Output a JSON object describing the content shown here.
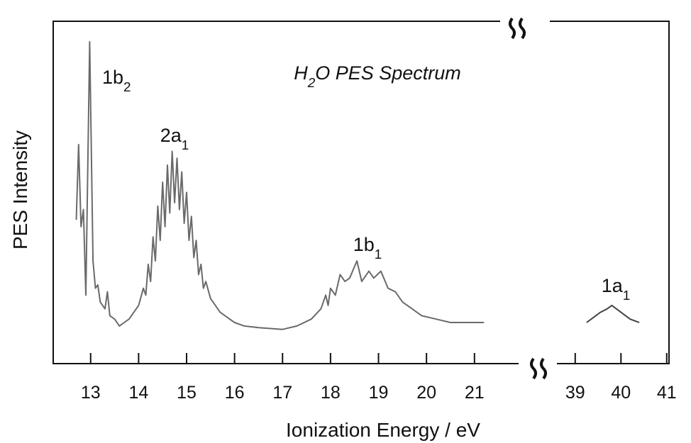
{
  "chart_data": {
    "type": "line",
    "title": "H2O PES Spectrum",
    "xlabel": "Ionization Energy / eV",
    "ylabel": "PES Intensity",
    "xlim": [
      12.22,
      21.92
    ],
    "xticks": [
      13,
      14,
      15,
      16,
      17,
      18,
      19,
      20,
      21
    ],
    "xlim_right": [
      38.6,
      41.05
    ],
    "xticks_right": [
      39,
      40,
      41
    ],
    "ylim": [
      0,
      100
    ],
    "annotations": [
      "1b2",
      "2a1",
      "1b1",
      "1a1"
    ],
    "series": [
      {
        "color": "#6a6a6a",
        "x": [
          12.7,
          12.75,
          12.8,
          12.85,
          12.9,
          12.98,
          13.05,
          13.1,
          13.15,
          13.2,
          13.3,
          13.35,
          13.4,
          13.5,
          13.6,
          13.7,
          13.8,
          13.9,
          14.0,
          14.1,
          14.15,
          14.2,
          14.25,
          14.3,
          14.35,
          14.4,
          14.45,
          14.5,
          14.55,
          14.6,
          14.65,
          14.7,
          14.75,
          14.8,
          14.85,
          14.9,
          14.95,
          15.0,
          15.05,
          15.1,
          15.15,
          15.2,
          15.25,
          15.3,
          15.35,
          15.4,
          15.5,
          15.6,
          15.7,
          15.8,
          16.0,
          16.2,
          16.5,
          17.0,
          17.3,
          17.6,
          17.8,
          17.9,
          17.95,
          18.0,
          18.1,
          18.2,
          18.3,
          18.4,
          18.55,
          18.65,
          18.8,
          18.9,
          19.05,
          19.2,
          19.35,
          19.5,
          19.7,
          19.9,
          20.2,
          20.5,
          20.8,
          21.0,
          21.2
        ],
        "values": [
          42,
          64,
          40,
          45,
          20,
          94,
          30,
          22,
          23,
          18,
          16,
          21,
          14,
          13,
          11,
          12,
          13,
          15,
          17,
          22,
          20,
          29,
          24,
          37,
          30,
          46,
          36,
          53,
          40,
          58,
          44,
          62,
          47,
          60,
          45,
          56,
          41,
          50,
          36,
          43,
          31,
          36,
          26,
          29,
          22,
          24,
          19,
          17,
          15,
          14,
          12,
          11,
          10.5,
          10,
          11,
          13,
          16,
          20,
          17,
          22,
          20,
          26,
          24,
          25,
          30,
          24,
          27,
          25,
          27,
          22,
          21,
          18,
          16,
          14,
          13,
          12,
          12,
          12,
          12
        ]
      },
      {
        "color": "#444444",
        "axis": "x_right",
        "x": [
          39.25,
          39.4,
          39.55,
          39.7,
          39.8,
          39.9,
          40.0,
          40.2,
          40.4
        ],
        "values": [
          12,
          13.5,
          15,
          16,
          17,
          16,
          15,
          13,
          12
        ]
      }
    ]
  }
}
